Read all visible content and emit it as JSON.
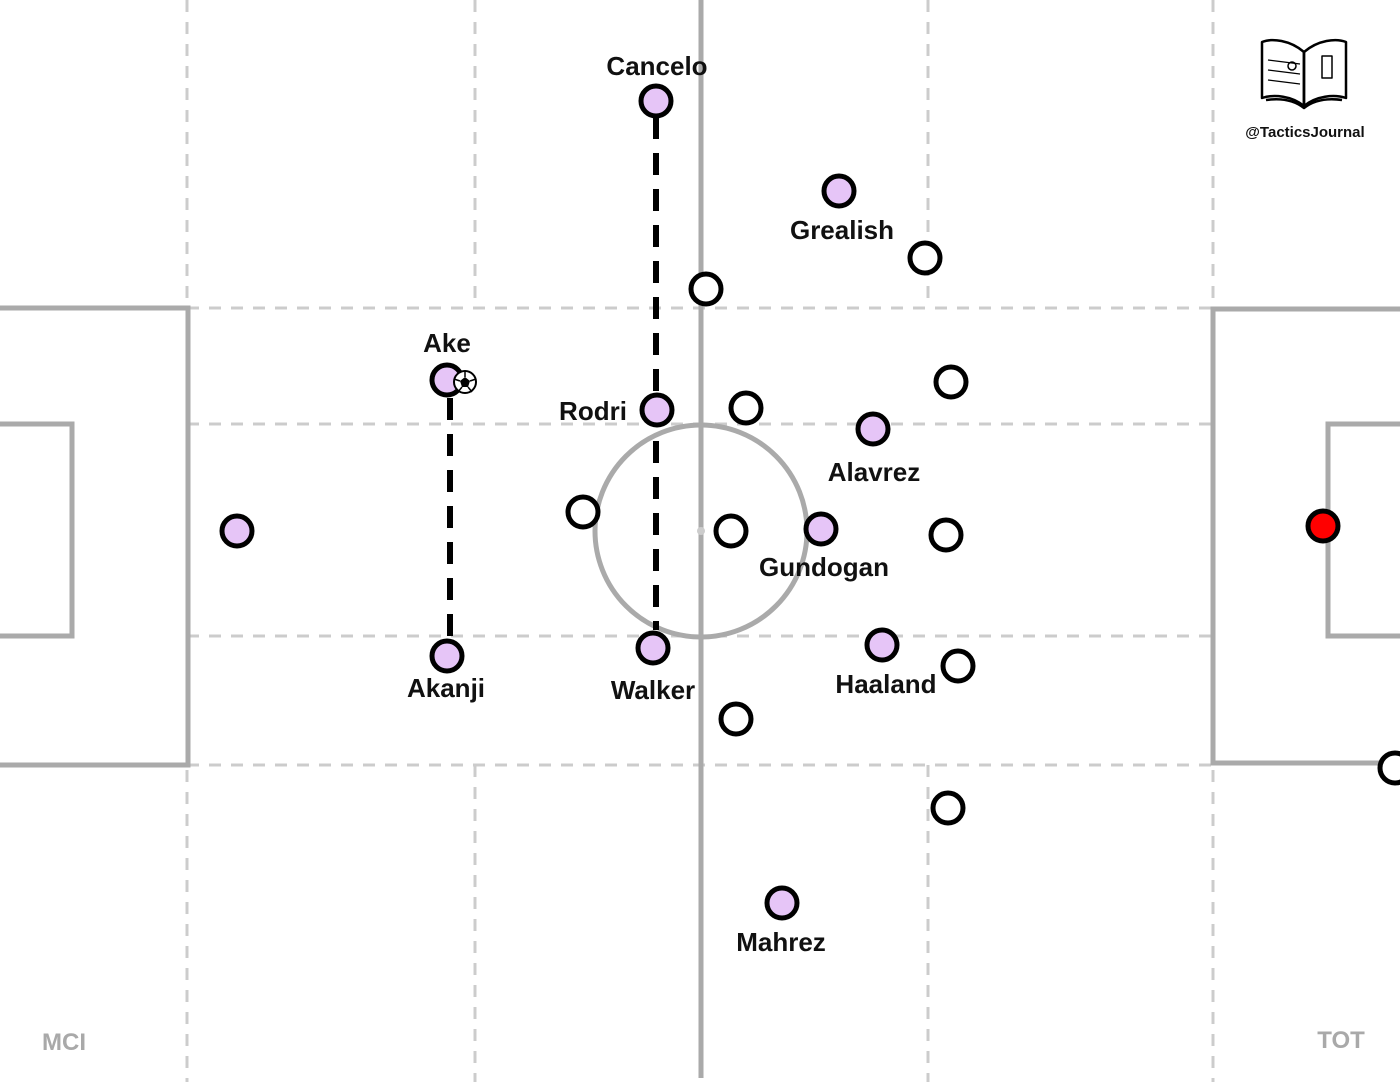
{
  "brand": {
    "handle": "@TacticsJournal",
    "logo": "open-book-pitch-icon"
  },
  "teams": {
    "home": "MCI",
    "away": "TOT"
  },
  "colors": {
    "home_fill": "#e6c5f7",
    "away_fill": "#ffffff",
    "keeper_fill": "#ff0000",
    "line": "#aaaaaa",
    "zone_line": "#cccccc",
    "marker_outline": "#000000"
  },
  "players": [
    {
      "label": "Cancelo",
      "team": "home"
    },
    {
      "label": "Grealish",
      "team": "home"
    },
    {
      "label": "Ake",
      "team": "home",
      "has_ball": true
    },
    {
      "label": "Rodri",
      "team": "home"
    },
    {
      "label": "Alavrez",
      "team": "home"
    },
    {
      "label": "Gundogan",
      "team": "home"
    },
    {
      "label": "Haaland",
      "team": "home"
    },
    {
      "label": "Akanji",
      "team": "home"
    },
    {
      "label": "Walker",
      "team": "home"
    },
    {
      "label": "Mahrez",
      "team": "home"
    },
    {
      "label": "",
      "team": "home",
      "role": "goalkeeper"
    },
    {
      "label": "",
      "team": "away",
      "role": "goalkeeper"
    }
  ],
  "opponent_markers": 11,
  "links": [
    {
      "from": "Cancelo",
      "to": "Walker",
      "style": "dashed"
    },
    {
      "from": "Ake",
      "to": "Akanji",
      "style": "dashed"
    }
  ]
}
